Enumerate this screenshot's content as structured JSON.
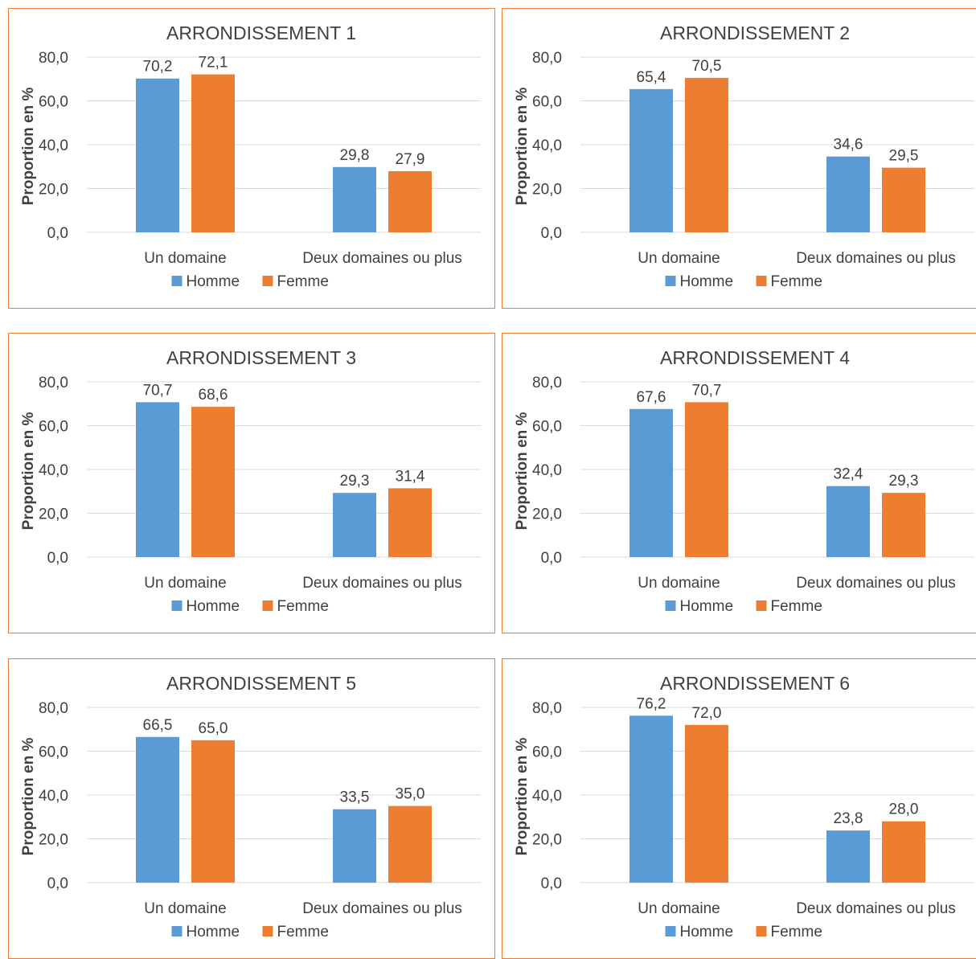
{
  "page": {
    "heading": ""
  },
  "colors": {
    "homme": "#5b9bd5",
    "femme": "#ed7d31",
    "panel_border": "#ed7d31",
    "grid": "#d9d9d9",
    "text": "#404040"
  },
  "chart_data": [
    {
      "type": "bar",
      "title": "ARRONDISSEMENT 1",
      "ylabel": "Proportion en %",
      "ylim": [
        0,
        80
      ],
      "yticks": [
        "0,0",
        "20,0",
        "40,0",
        "60,0",
        "80,0"
      ],
      "categories": [
        "Un domaine",
        "Deux domaines ou plus"
      ],
      "series": [
        {
          "name": "Homme",
          "values": [
            70.2,
            29.8
          ],
          "labels": [
            "70,2",
            "29,8"
          ]
        },
        {
          "name": "Femme",
          "values": [
            72.1,
            27.9
          ],
          "labels": [
            "72,1",
            "27,9"
          ]
        }
      ],
      "legend": "bottom",
      "grid": true
    },
    {
      "type": "bar",
      "title": "ARRONDISSEMENT 2",
      "ylabel": "Proportion en %",
      "ylim": [
        0,
        80
      ],
      "yticks": [
        "0,0",
        "20,0",
        "40,0",
        "60,0",
        "80,0"
      ],
      "categories": [
        "Un domaine",
        "Deux domaines ou plus"
      ],
      "series": [
        {
          "name": "Homme",
          "values": [
            65.4,
            34.6
          ],
          "labels": [
            "65,4",
            "34,6"
          ]
        },
        {
          "name": "Femme",
          "values": [
            70.5,
            29.5
          ],
          "labels": [
            "70,5",
            "29,5"
          ]
        }
      ],
      "legend": "bottom",
      "grid": true
    },
    {
      "type": "bar",
      "title": "ARRONDISSEMENT 3",
      "ylabel": "Proportion en %",
      "ylim": [
        0,
        80
      ],
      "yticks": [
        "0,0",
        "20,0",
        "40,0",
        "60,0",
        "80,0"
      ],
      "categories": [
        "Un domaine",
        "Deux domaines ou plus"
      ],
      "series": [
        {
          "name": "Homme",
          "values": [
            70.7,
            29.3
          ],
          "labels": [
            "70,7",
            "29,3"
          ]
        },
        {
          "name": "Femme",
          "values": [
            68.6,
            31.4
          ],
          "labels": [
            "68,6",
            "31,4"
          ]
        }
      ],
      "legend": "bottom",
      "grid": true
    },
    {
      "type": "bar",
      "title": "ARRONDISSEMENT 4",
      "ylabel": "Proportion en %",
      "ylim": [
        0,
        80
      ],
      "yticks": [
        "0,0",
        "20,0",
        "40,0",
        "60,0",
        "80,0"
      ],
      "categories": [
        "Un domaine",
        "Deux domaines ou plus"
      ],
      "series": [
        {
          "name": "Homme",
          "values": [
            67.6,
            32.4
          ],
          "labels": [
            "67,6",
            "32,4"
          ]
        },
        {
          "name": "Femme",
          "values": [
            70.7,
            29.3
          ],
          "labels": [
            "70,7",
            "29,3"
          ]
        }
      ],
      "legend": "bottom",
      "grid": true
    },
    {
      "type": "bar",
      "title": "ARRONDISSEMENT 5",
      "ylabel": "Proportion en %",
      "ylim": [
        0,
        80
      ],
      "yticks": [
        "0,0",
        "20,0",
        "40,0",
        "60,0",
        "80,0"
      ],
      "categories": [
        "Un domaine",
        "Deux domaines ou plus"
      ],
      "series": [
        {
          "name": "Homme",
          "values": [
            66.5,
            33.5
          ],
          "labels": [
            "66,5",
            "33,5"
          ]
        },
        {
          "name": "Femme",
          "values": [
            65.0,
            35.0
          ],
          "labels": [
            "65,0",
            "35,0"
          ]
        }
      ],
      "legend": "bottom",
      "grid": true
    },
    {
      "type": "bar",
      "title": "ARRONDISSEMENT 6",
      "ylabel": "Proportion en %",
      "ylim": [
        0,
        80
      ],
      "yticks": [
        "0,0",
        "20,0",
        "40,0",
        "60,0",
        "80,0"
      ],
      "categories": [
        "Un domaine",
        "Deux domaines ou plus"
      ],
      "series": [
        {
          "name": "Homme",
          "values": [
            76.2,
            23.8
          ],
          "labels": [
            "76,2",
            "23,8"
          ]
        },
        {
          "name": "Femme",
          "values": [
            72.0,
            28.0
          ],
          "labels": [
            "72,0",
            "28,0"
          ]
        }
      ],
      "legend": "bottom",
      "grid": true
    }
  ]
}
